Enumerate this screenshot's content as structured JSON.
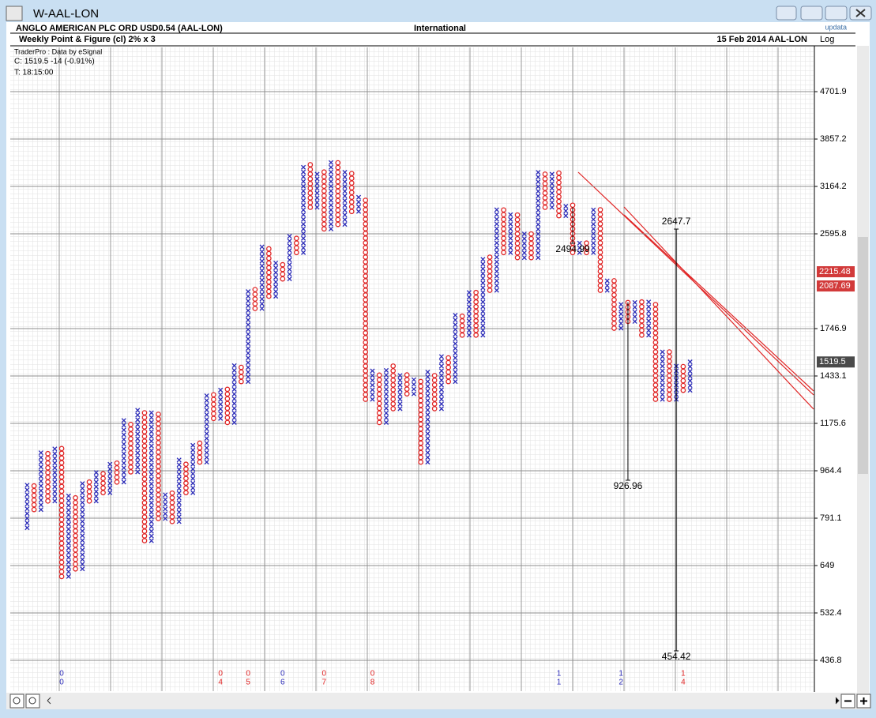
{
  "window": {
    "title": "W-AAL-LON"
  },
  "header": {
    "instrument": "ANGLO AMERICAN PLC ORD USD0.54 (AAL-LON)",
    "exchange": "International",
    "chart_name": "Weekly Point & Figure (cl) 2% x 3",
    "date": "15 Feb 2014  AAL-LON",
    "scale": "Log",
    "brand": "updata"
  },
  "info": {
    "source": "TraderPro : Data by eSignal",
    "close": "C: 1519.5  -14 (-0.91%)",
    "time": "T: 18:15:00"
  },
  "chart_data": {
    "type": "pointfigure",
    "log_scale": true,
    "x_color": "#2b2bb8",
    "o_color": "#e02424",
    "turns": [
      760,
      900,
      820,
      1030,
      850,
      1050,
      620,
      860,
      640,
      920,
      850,
      960,
      880,
      1000,
      920,
      1180,
      960,
      1230,
      720,
      1230,
      790,
      880,
      780,
      1000,
      880,
      1080,
      1000,
      1330,
      1200,
      1350,
      1180,
      1500,
      1400,
      2050,
      1900,
      2450,
      2000,
      2300,
      2150,
      2550,
      2400,
      3450,
      2900,
      3350,
      2650,
      3500,
      2700,
      3350,
      2850,
      3000,
      1300,
      1450,
      1180,
      1480,
      1250,
      1450,
      1330,
      1400,
      1000,
      1450,
      1250,
      1550,
      1400,
      1850,
      1700,
      2050,
      1700,
      2350,
      2050,
      2850,
      2400,
      2800,
      2350,
      2600,
      2350,
      3350,
      2900,
      3350,
      2800,
      2900,
      2400,
      2500,
      2400,
      2850,
      2050,
      2150,
      1750,
      1950,
      1800,
      1950,
      1700,
      1950,
      1300,
      1600,
      1300,
      1500,
      1350,
      1520
    ],
    "ylim": [
      384,
      5620
    ],
    "yticks": [
      436.8,
      532.4,
      649,
      791.1,
      964.4,
      1175.6,
      1433.1,
      1746.9,
      2595.8,
      3164.2,
      3857.2,
      4701.9
    ],
    "price_labels": [
      {
        "value": 2215.48,
        "color": "#d23a3a"
      },
      {
        "value": 2087.69,
        "color": "#d23a3a"
      },
      {
        "value": 1519.5,
        "color": "#4a4a4a"
      }
    ],
    "targets": [
      {
        "value": 2494.99,
        "column": 79
      },
      {
        "value": 926.96,
        "column": 87
      },
      {
        "value": 2647.7,
        "column": 94
      },
      {
        "value": 454.42,
        "column": 94
      }
    ],
    "year_marks": [
      {
        "column": 5,
        "top": "0",
        "bottom": "0",
        "color": "#2b2bb8"
      },
      {
        "column": 28,
        "top": "0",
        "bottom": "4",
        "color": "#e02424"
      },
      {
        "column": 32,
        "top": "0",
        "bottom": "5",
        "color": "#e02424"
      },
      {
        "column": 37,
        "top": "0",
        "bottom": "6",
        "color": "#2b2bb8"
      },
      {
        "column": 43,
        "top": "0",
        "bottom": "7",
        "color": "#e02424"
      },
      {
        "column": 50,
        "top": "0",
        "bottom": "8",
        "color": "#e02424"
      },
      {
        "column": 77,
        "top": "1",
        "bottom": "1",
        "color": "#2b2bb8"
      },
      {
        "column": 86,
        "top": "1",
        "bottom": "2",
        "color": "#2b2bb8"
      },
      {
        "column": 95,
        "top": "1",
        "bottom": "4",
        "color": "#e02424"
      }
    ]
  }
}
